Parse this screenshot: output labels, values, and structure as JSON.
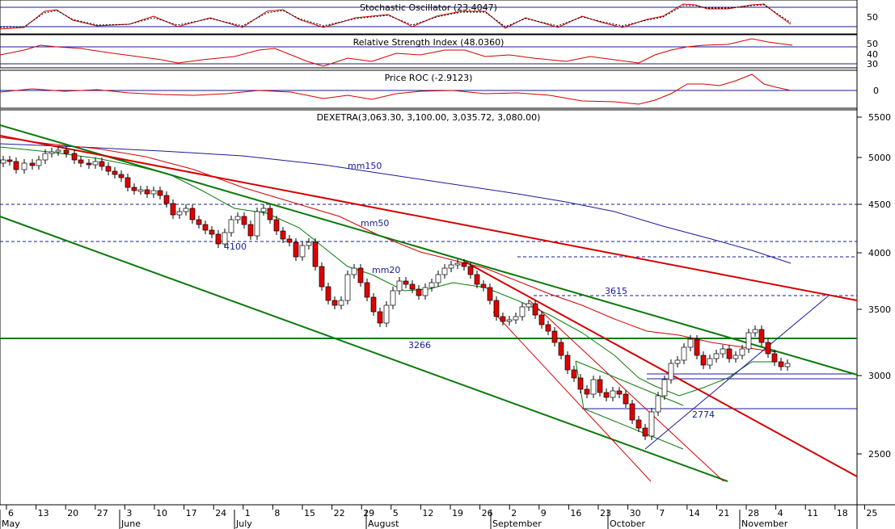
{
  "panels": {
    "stochastic": {
      "title": "Stochastic Oscillator (23.4047)",
      "axis": [
        "50"
      ]
    },
    "rsi": {
      "title": "Relative Strength Index (48.0360)",
      "axis": [
        "50",
        "40",
        "30"
      ]
    },
    "roc": {
      "title": "Price ROC (-2.9123)",
      "axis": [
        "0"
      ]
    },
    "price": {
      "title": "DEXETRA(3,063.30, 3,100.00, 3,035.72, 3,080.00)"
    }
  },
  "annotations": [
    "mm150",
    "mm50",
    "mm20",
    "4100",
    "3615",
    "3266",
    "2774"
  ],
  "chart_data": {
    "type": "candlestick",
    "price_axis": {
      "ticks": [
        "5500",
        "5000",
        "4500",
        "4000",
        "3500",
        "3000",
        "2500"
      ]
    },
    "date_axis": {
      "days": [
        "6",
        "13",
        "20",
        "27",
        "3",
        "10",
        "17",
        "24",
        "1",
        "8",
        "15",
        "22",
        "29",
        "5",
        "12",
        "19",
        "26",
        "2",
        "9",
        "16",
        "23",
        "30",
        "7",
        "14",
        "21",
        "28",
        "4",
        "11",
        "18",
        "25"
      ],
      "months": [
        "May",
        "June",
        "July",
        "August",
        "September",
        "October",
        "November"
      ]
    },
    "levels": [
      4500,
      4100,
      3950,
      3615,
      3266,
      3050,
      3020,
      2774
    ],
    "last": {
      "open": 3063.3,
      "high": 3100.0,
      "low": 3035.72,
      "close": 3080.0
    },
    "colors": {
      "up": "#ffffff",
      "down": "#e00000",
      "mm150": "#1a1a9a",
      "mm50": "#d40000",
      "mm20": "#0a7a0a"
    }
  }
}
